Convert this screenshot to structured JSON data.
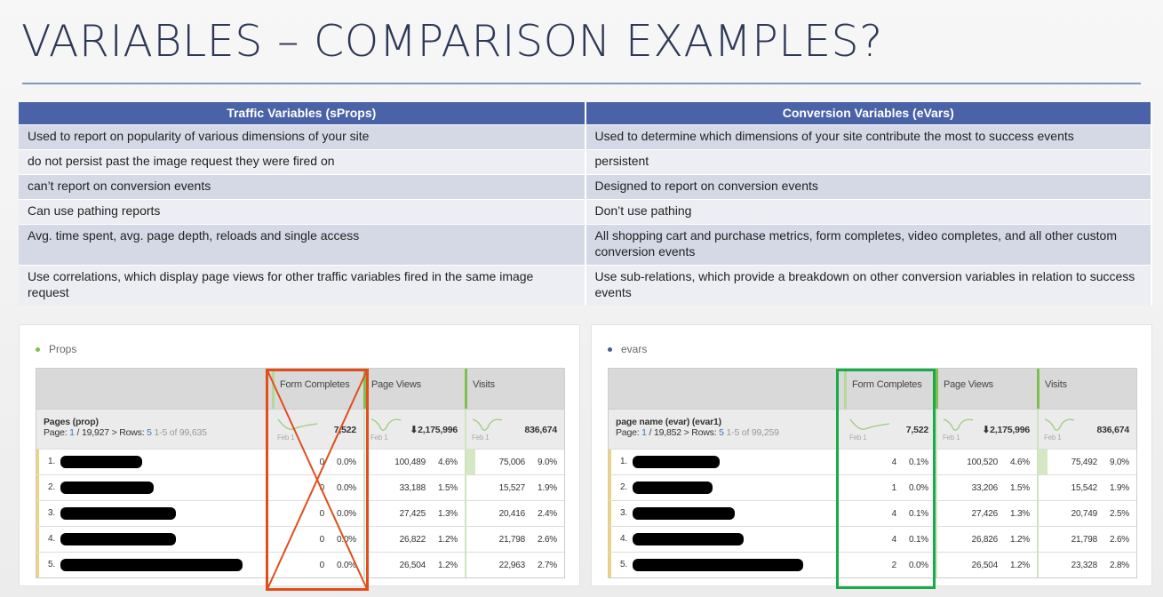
{
  "title": "VARIABLES – COMPARISON EXAMPLES?",
  "comparison": {
    "headers": [
      "Traffic Variables (sProps)",
      "Conversion Variables (eVars)"
    ],
    "rows": [
      [
        "Used to report on popularity of various dimensions of your site",
        "Used to determine which dimensions of your site contribute the most to success events"
      ],
      [
        "do not persist past the image request they were fired on",
        "persistent"
      ],
      [
        "can’t report on conversion events",
        "Designed to report on conversion events"
      ],
      [
        "Can use pathing reports",
        "Don’t use pathing"
      ],
      [
        "Avg. time spent, avg. page depth, reloads and single access",
        "All shopping cart and purchase metrics, form completes, video completes, and all other custom conversion events"
      ],
      [
        "Use correlations, which display page views for other traffic variables fired in the same image request",
        "Use sub-relations, which provide a breakdown on other conversion variables in relation to success events"
      ]
    ]
  },
  "colors": {
    "header": "#4a62a7",
    "props_dot": "#7fbf4d",
    "evars_dot": "#4a5a9a",
    "cross_out": "#e04e1b",
    "highlight": "#19aa4a"
  },
  "panels": [
    {
      "title": "Props",
      "dimension": "Pages (prop)",
      "page_label": "Page:",
      "page": "1",
      "pages": "/ 19,927 >",
      "rows_label": "Rows:",
      "rows_count": "5",
      "range": "1-5 of 99,635",
      "metrics": [
        "Form Completes",
        "Page Views",
        "Visits"
      ],
      "spark_label": "Feb 1",
      "totals": [
        "7,522",
        "⬇2,175,996",
        "836,674"
      ],
      "rows": [
        [
          "1.",
          "0",
          "0.0%",
          "100,489",
          "4.6%",
          "75,006",
          "9.0%"
        ],
        [
          "2.",
          "0",
          "0.0%",
          "33,188",
          "1.5%",
          "15,527",
          "1.9%"
        ],
        [
          "3.",
          "0",
          "0.0%",
          "27,425",
          "1.3%",
          "20,416",
          "2.4%"
        ],
        [
          "4.",
          "0",
          "0.0%",
          "26,822",
          "1.2%",
          "21,798",
          "2.6%"
        ],
        [
          "5.",
          "0",
          "0.0%",
          "26,504",
          "1.2%",
          "22,963",
          "2.7%"
        ]
      ]
    },
    {
      "title": "evars",
      "dimension": "page name (evar) (evar1)",
      "page_label": "Page:",
      "page": "1",
      "pages": "/ 19,852 >",
      "rows_label": "Rows:",
      "rows_count": "5",
      "range": "1-5 of 99,259",
      "metrics": [
        "Form Completes",
        "Page Views",
        "Visits"
      ],
      "spark_label": "Feb 1",
      "totals": [
        "7,522",
        "⬇2,175,996",
        "836,674"
      ],
      "rows": [
        [
          "1.",
          "4",
          "0.1%",
          "100,520",
          "4.6%",
          "75,492",
          "9.0%"
        ],
        [
          "2.",
          "1",
          "0.0%",
          "33,206",
          "1.5%",
          "15,542",
          "1.9%"
        ],
        [
          "3.",
          "4",
          "0.1%",
          "27,426",
          "1.3%",
          "20,749",
          "2.5%"
        ],
        [
          "4.",
          "4",
          "0.1%",
          "26,826",
          "1.2%",
          "21,798",
          "2.6%"
        ],
        [
          "5.",
          "2",
          "0.0%",
          "26,504",
          "1.2%",
          "23,328",
          "2.8%"
        ]
      ]
    }
  ]
}
